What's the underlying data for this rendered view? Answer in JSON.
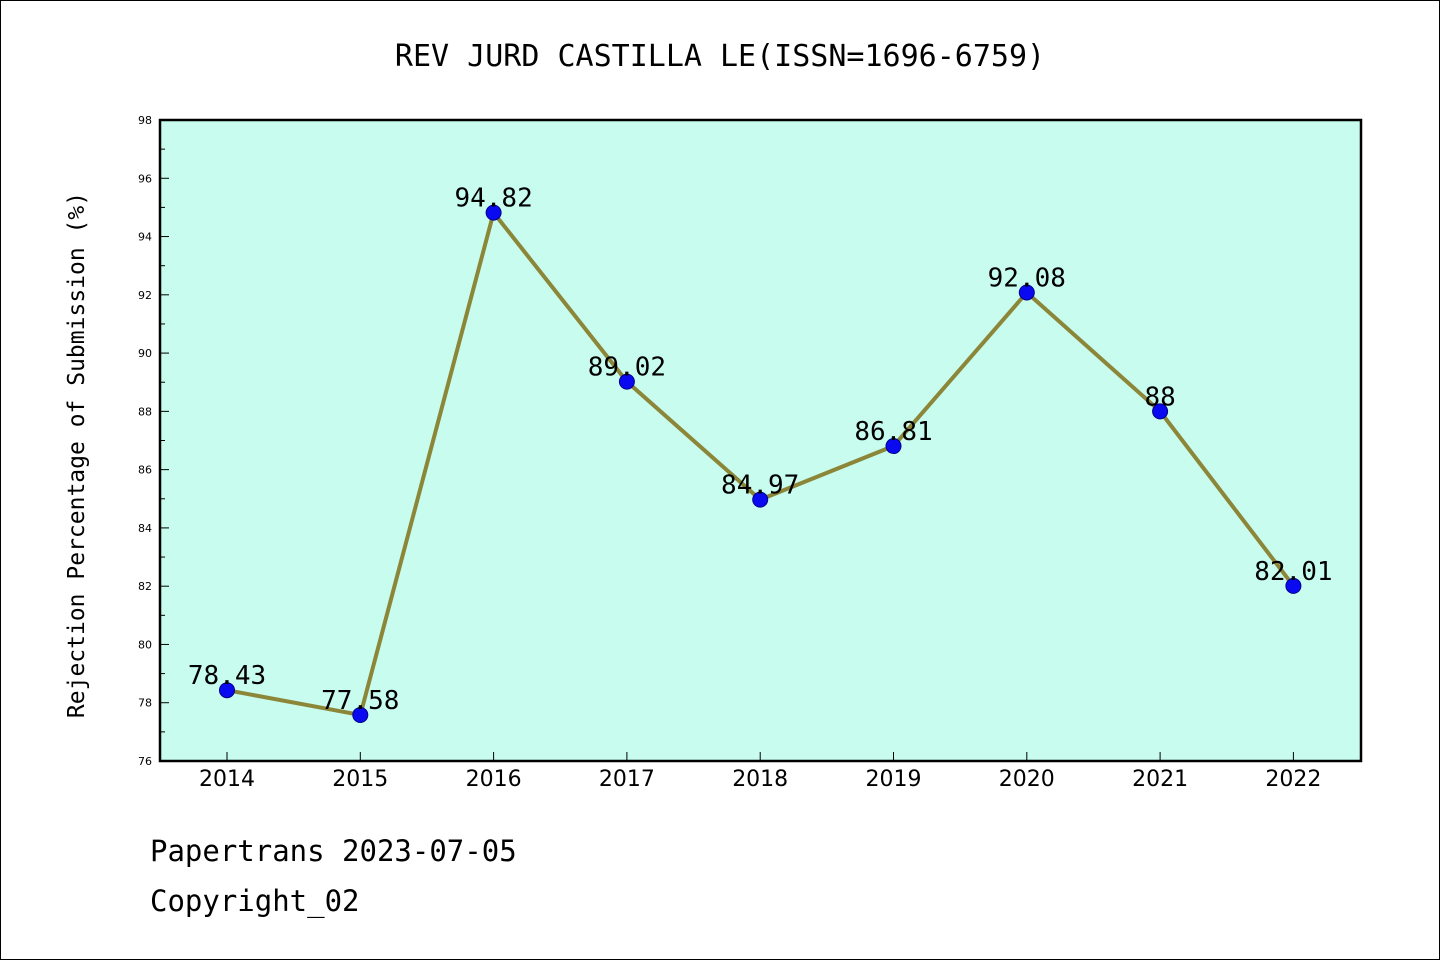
{
  "chart_data": {
    "type": "line",
    "title": "REV JURD CASTILLA LE(ISSN=1696-6759)",
    "xlabel": "",
    "ylabel": "Rejection Percentage of Submission (%)",
    "categories": [
      "2014",
      "2015",
      "2016",
      "2017",
      "2018",
      "2019",
      "2020",
      "2021",
      "2022"
    ],
    "values": [
      78.43,
      77.58,
      94.82,
      89.02,
      84.97,
      86.81,
      92.08,
      88,
      82.01
    ],
    "value_labels": [
      "78.43",
      "77.58",
      "94.82",
      "89.02",
      "84.97",
      "86.81",
      "92.08",
      "88",
      "82.01"
    ],
    "ylim": [
      76,
      98
    ],
    "yticks": [
      "76",
      "78",
      "80",
      "82",
      "84",
      "86",
      "88",
      "90",
      "92",
      "94",
      "96",
      "98"
    ],
    "grid": false,
    "colors": {
      "plot_background": "#c8fcee",
      "line": "#8c8639",
      "marker": "#0a0af0"
    }
  },
  "footer": {
    "source": "Papertrans 2023-07-05",
    "copyright": "Copyright_02"
  }
}
